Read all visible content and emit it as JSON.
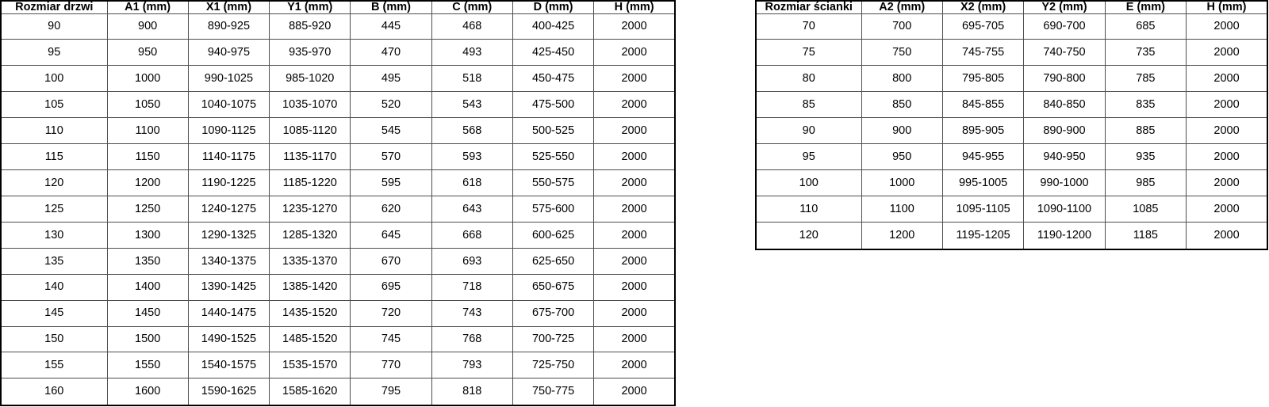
{
  "colors": {
    "background": "#ffffff",
    "outer_border": "#000000",
    "grid_line": "#4d4d4d",
    "text": "#000000"
  },
  "tables": [
    {
      "id": "door-sizes-table",
      "headers": [
        "Rozmiar drzwi",
        "A1 (mm)",
        "X1 (mm)",
        "Y1 (mm)",
        "B (mm)",
        "C (mm)",
        "D (mm)",
        "H (mm)"
      ],
      "rows": [
        [
          "90",
          "900",
          "890-925",
          "885-920",
          "445",
          "468",
          "400-425",
          "2000"
        ],
        [
          "95",
          "950",
          "940-975",
          "935-970",
          "470",
          "493",
          "425-450",
          "2000"
        ],
        [
          "100",
          "1000",
          "990-1025",
          "985-1020",
          "495",
          "518",
          "450-475",
          "2000"
        ],
        [
          "105",
          "1050",
          "1040-1075",
          "1035-1070",
          "520",
          "543",
          "475-500",
          "2000"
        ],
        [
          "110",
          "1100",
          "1090-1125",
          "1085-1120",
          "545",
          "568",
          "500-525",
          "2000"
        ],
        [
          "115",
          "1150",
          "1140-1175",
          "1135-1170",
          "570",
          "593",
          "525-550",
          "2000"
        ],
        [
          "120",
          "1200",
          "1190-1225",
          "1185-1220",
          "595",
          "618",
          "550-575",
          "2000"
        ],
        [
          "125",
          "1250",
          "1240-1275",
          "1235-1270",
          "620",
          "643",
          "575-600",
          "2000"
        ],
        [
          "130",
          "1300",
          "1290-1325",
          "1285-1320",
          "645",
          "668",
          "600-625",
          "2000"
        ],
        [
          "135",
          "1350",
          "1340-1375",
          "1335-1370",
          "670",
          "693",
          "625-650",
          "2000"
        ],
        [
          "140",
          "1400",
          "1390-1425",
          "1385-1420",
          "695",
          "718",
          "650-675",
          "2000"
        ],
        [
          "145",
          "1450",
          "1440-1475",
          "1435-1520",
          "720",
          "743",
          "675-700",
          "2000"
        ],
        [
          "150",
          "1500",
          "1490-1525",
          "1485-1520",
          "745",
          "768",
          "700-725",
          "2000"
        ],
        [
          "155",
          "1550",
          "1540-1575",
          "1535-1570",
          "770",
          "793",
          "725-750",
          "2000"
        ],
        [
          "160",
          "1600",
          "1590-1625",
          "1585-1620",
          "795",
          "818",
          "750-775",
          "2000"
        ]
      ]
    },
    {
      "id": "wall-sizes-table",
      "headers": [
        "Rozmiar ścianki",
        "A2 (mm)",
        "X2 (mm)",
        "Y2 (mm)",
        "E (mm)",
        "H (mm)"
      ],
      "rows": [
        [
          "70",
          "700",
          "695-705",
          "690-700",
          "685",
          "2000"
        ],
        [
          "75",
          "750",
          "745-755",
          "740-750",
          "735",
          "2000"
        ],
        [
          "80",
          "800",
          "795-805",
          "790-800",
          "785",
          "2000"
        ],
        [
          "85",
          "850",
          "845-855",
          "840-850",
          "835",
          "2000"
        ],
        [
          "90",
          "900",
          "895-905",
          "890-900",
          "885",
          "2000"
        ],
        [
          "95",
          "950",
          "945-955",
          "940-950",
          "935",
          "2000"
        ],
        [
          "100",
          "1000",
          "995-1005",
          "990-1000",
          "985",
          "2000"
        ],
        [
          "110",
          "1100",
          "1095-1105",
          "1090-1100",
          "1085",
          "2000"
        ],
        [
          "120",
          "1200",
          "1195-1205",
          "1190-1200",
          "1185",
          "2000"
        ]
      ]
    }
  ]
}
